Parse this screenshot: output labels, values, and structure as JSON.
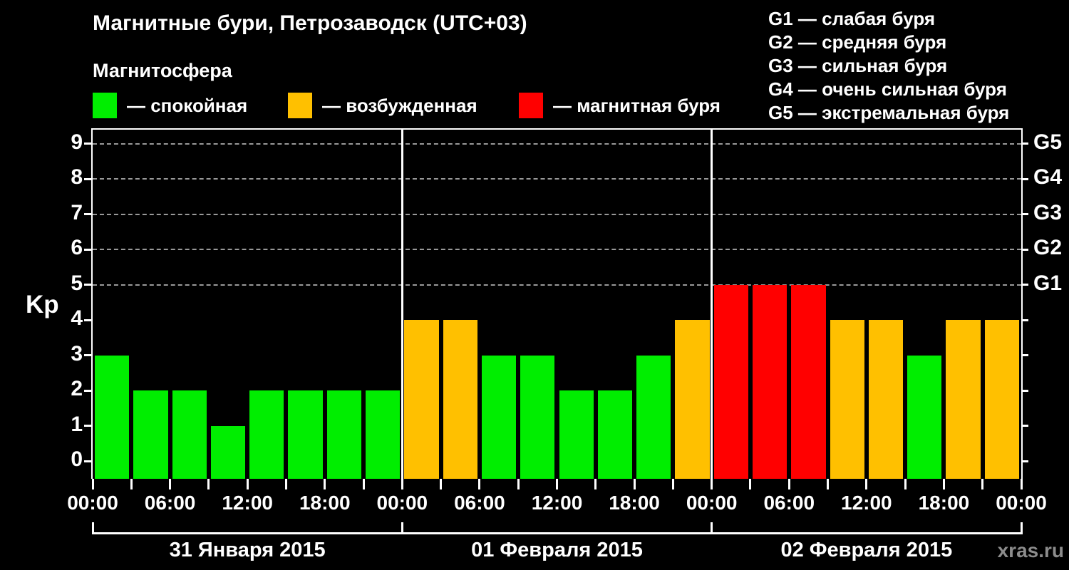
{
  "header": {
    "title": "Магнитные бури, Петрозаводск (UTC+03)",
    "subtitle": "Магнитосфера",
    "legend": [
      {
        "key": "quiet",
        "color": "#00ee00",
        "label": "— спокойная"
      },
      {
        "key": "excited",
        "color": "#ffc000",
        "label": "— возбужденная"
      },
      {
        "key": "storm",
        "color": "#ff0000",
        "label": "— магнитная буря"
      }
    ],
    "g_scale_legend": [
      "G1 — слабая буря",
      "G2 — средняя буря",
      "G3 — сильная буря",
      "G4 — очень сильная буря",
      "G5 — экстремальная буря"
    ]
  },
  "chart_data": {
    "type": "bar",
    "title": "Магнитные бури, Петрозаводск (UTC+03)",
    "xlabel": "",
    "ylabel": "Kp",
    "ylim": [
      -0.5,
      9.4
    ],
    "hours_per_bar": 3,
    "y_tick_labels": [
      "0",
      "1",
      "2",
      "3",
      "4",
      "5",
      "6",
      "7",
      "8",
      "9"
    ],
    "gridlines_at": [
      5,
      6,
      7,
      8,
      9
    ],
    "right_axis_labels": [
      {
        "kp": 5,
        "label": "G1"
      },
      {
        "kp": 6,
        "label": "G2"
      },
      {
        "kp": 7,
        "label": "G3"
      },
      {
        "kp": 8,
        "label": "G4"
      },
      {
        "kp": 9,
        "label": "G5"
      }
    ],
    "x_tick_labels": [
      "00:00",
      "06:00",
      "12:00",
      "18:00",
      "00:00",
      "06:00",
      "12:00",
      "18:00",
      "00:00",
      "06:00",
      "12:00",
      "18:00",
      "00:00"
    ],
    "x_label_every_hours": 6,
    "days": [
      {
        "date": "31 Января 2015",
        "values": [
          3,
          2,
          2,
          1,
          2,
          2,
          2,
          2
        ]
      },
      {
        "date": "01 Февраля 2015",
        "values": [
          4,
          4,
          3,
          3,
          2,
          2,
          3,
          4
        ]
      },
      {
        "date": "02 Февраля 2015",
        "values": [
          5,
          5,
          5,
          4,
          4,
          3,
          4,
          4
        ]
      }
    ],
    "color_rules": {
      "quiet_max_kp": 3,
      "excited_kp": 4,
      "storm_min_kp": 5
    },
    "colors": {
      "quiet": "#00ee00",
      "excited": "#ffc000",
      "storm": "#ff0000"
    },
    "grid_color": "#999999",
    "legend_position": "top"
  },
  "watermark": "xras.ru"
}
